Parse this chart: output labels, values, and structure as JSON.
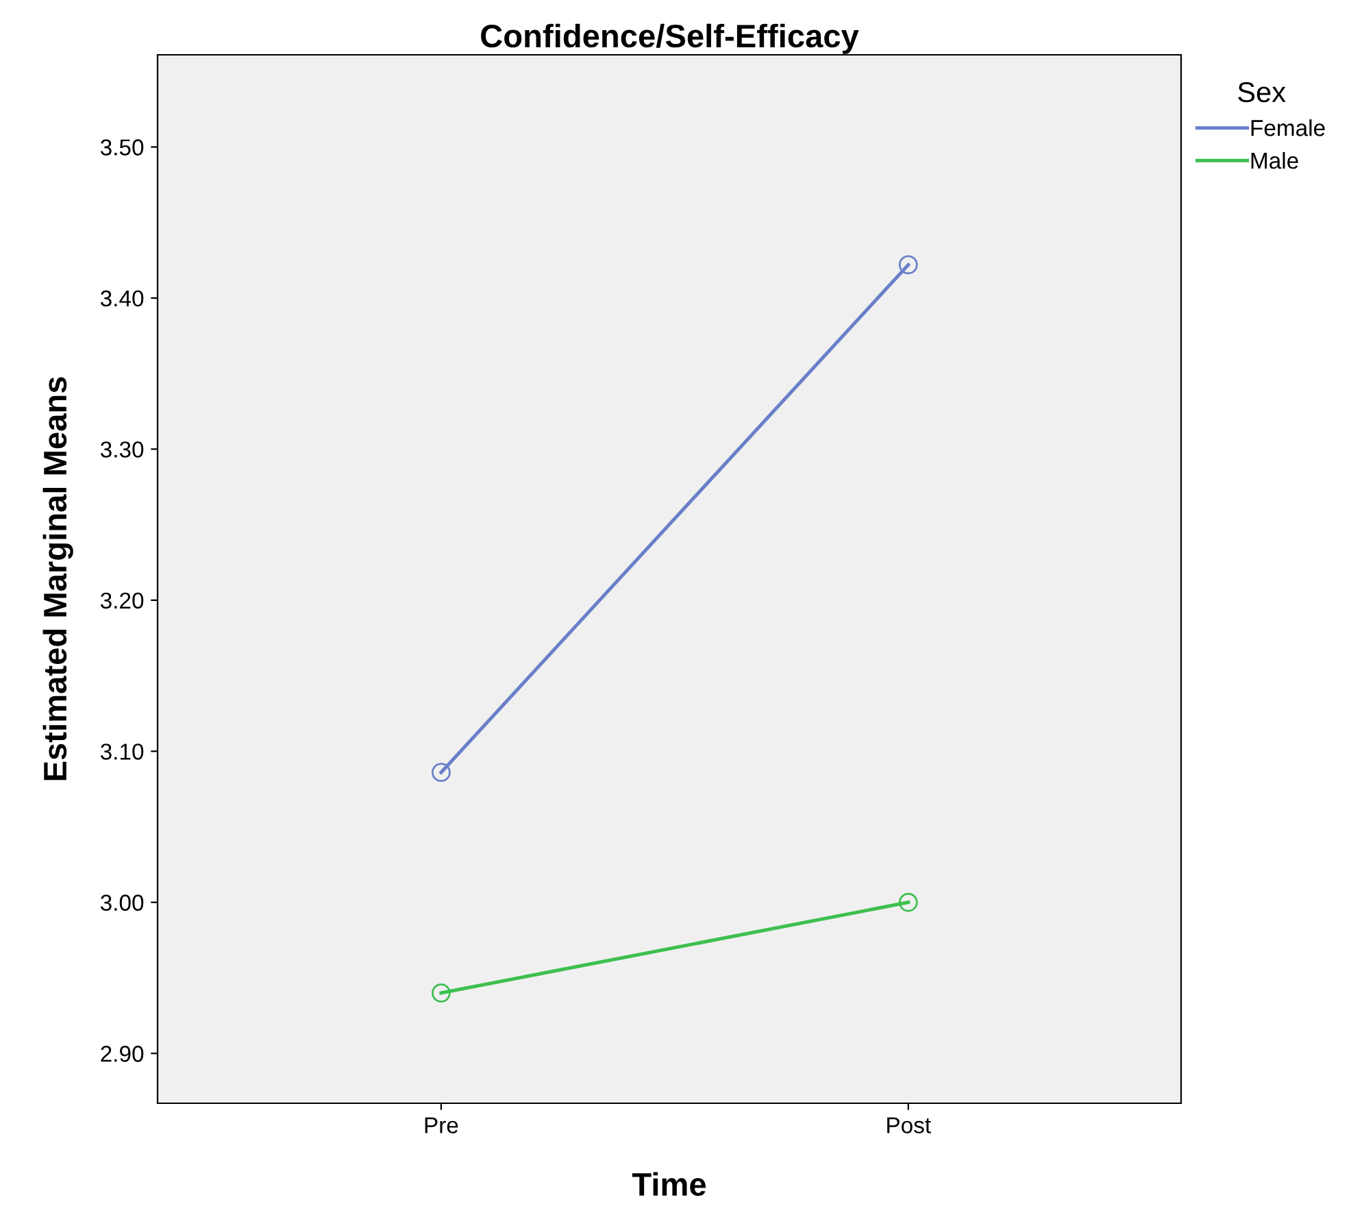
{
  "chart_data": {
    "type": "line",
    "title": "Confidence/Self-Efficacy",
    "xlabel": "Time",
    "ylabel": "Estimated Marginal Means",
    "legend_title": "Sex",
    "categories": [
      "Pre",
      "Post"
    ],
    "series": [
      {
        "name": "Female",
        "color": "#6a7fc9",
        "values": [
          3.086,
          3.422
        ]
      },
      {
        "name": "Male",
        "color": "#3dbf4f",
        "values": [
          2.94,
          3.0
        ]
      }
    ],
    "ylim": [
      2.867,
      3.561
    ],
    "yticks": [
      {
        "value": 2.9,
        "label": "2.90"
      },
      {
        "value": 3.0,
        "label": "3.00"
      },
      {
        "value": 3.1,
        "label": "3.10"
      },
      {
        "value": 3.2,
        "label": "3.20"
      },
      {
        "value": 3.3,
        "label": "3.30"
      },
      {
        "value": 3.4,
        "label": "3.40"
      },
      {
        "value": 3.5,
        "label": "3.50"
      }
    ],
    "marker": "circle",
    "line_style": "solid",
    "grid": false,
    "legend": "top right"
  }
}
